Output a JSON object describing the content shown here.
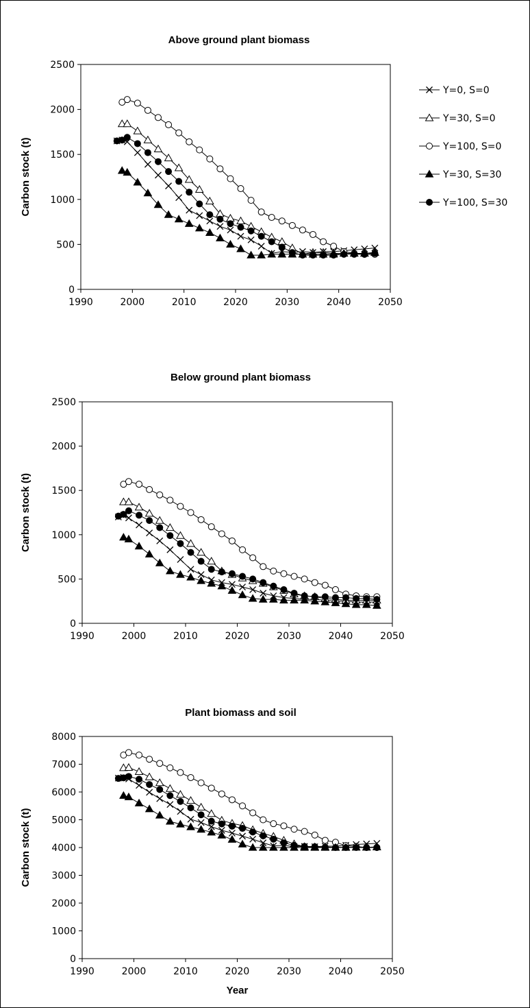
{
  "chart_data": [
    {
      "type": "line",
      "title": "Above ground plant biomass",
      "xlabel": "",
      "ylabel": "Carbon stock (t)",
      "xlim": [
        1990,
        2050
      ],
      "ylim": [
        0,
        2500
      ],
      "xticks": [
        "1990",
        "2000",
        "2010",
        "2020",
        "2030",
        "2040",
        "2050"
      ],
      "yticks": [
        "0",
        "500",
        "1000",
        "1500",
        "2000",
        "2500"
      ],
      "grid": false,
      "legend": "right",
      "x": [
        1997,
        1998,
        1999,
        2001,
        2003,
        2005,
        2007,
        2009,
        2011,
        2013,
        2015,
        2017,
        2019,
        2021,
        2023,
        2025,
        2027,
        2029,
        2031,
        2033,
        2035,
        2037,
        2039,
        2041,
        2043,
        2045,
        2047
      ],
      "series": [
        {
          "name": "Y=0, S=0",
          "marker": "x",
          "values": [
            1650,
            1660,
            1640,
            1520,
            1390,
            1270,
            1150,
            1020,
            880,
            820,
            760,
            700,
            660,
            590,
            550,
            480,
            400,
            420,
            410,
            420,
            410,
            420,
            420,
            430,
            440,
            450,
            460
          ]
        },
        {
          "name": "Y=30, S=0",
          "marker": "open-triangle",
          "values": [
            null,
            1840,
            1840,
            1760,
            1660,
            1560,
            1460,
            1350,
            1220,
            1110,
            980,
            840,
            790,
            760,
            700,
            640,
            580,
            530,
            460,
            390,
            410,
            410,
            400,
            400,
            400,
            400,
            410
          ]
        },
        {
          "name": "Y=100, S=0",
          "marker": "open-circle",
          "values": [
            null,
            2080,
            2110,
            2070,
            1990,
            1910,
            1830,
            1740,
            1640,
            1550,
            1450,
            1340,
            1230,
            1120,
            990,
            860,
            800,
            760,
            710,
            660,
            610,
            530,
            480,
            420,
            400,
            390,
            390
          ]
        },
        {
          "name": "Y=30, S=30",
          "marker": "filled-triangle",
          "values": [
            null,
            1320,
            1300,
            1190,
            1070,
            940,
            830,
            780,
            730,
            680,
            630,
            570,
            500,
            450,
            380,
            380,
            390,
            390,
            390,
            390,
            390,
            390,
            390,
            400,
            400,
            400,
            410
          ]
        },
        {
          "name": "Y=100, S=30",
          "marker": "filled-circle",
          "values": [
            1650,
            1660,
            1690,
            1620,
            1520,
            1420,
            1310,
            1200,
            1080,
            950,
            830,
            780,
            730,
            690,
            650,
            590,
            530,
            470,
            410,
            380,
            380,
            380,
            380,
            390,
            390,
            390,
            400
          ]
        }
      ]
    },
    {
      "type": "line",
      "title": "Below ground plant biomass",
      "xlabel": "",
      "ylabel": "Carbon stock (t)",
      "xlim": [
        1990,
        2050
      ],
      "ylim": [
        0,
        2500
      ],
      "xticks": [
        "1990",
        "2000",
        "2010",
        "2020",
        "2030",
        "2040",
        "2050"
      ],
      "yticks": [
        "0",
        "500",
        "1000",
        "1500",
        "2000",
        "2500"
      ],
      "grid": false,
      "x": [
        1997,
        1998,
        1999,
        2001,
        2003,
        2005,
        2007,
        2009,
        2011,
        2013,
        2015,
        2017,
        2019,
        2021,
        2023,
        2025,
        2027,
        2029,
        2031,
        2033,
        2035,
        2037,
        2039,
        2041,
        2043,
        2045,
        2047
      ],
      "series": [
        {
          "name": "Y=0, S=0",
          "marker": "x",
          "values": [
            1200,
            1220,
            1190,
            1110,
            1020,
            930,
            830,
            720,
            610,
            550,
            490,
            460,
            440,
            410,
            380,
            340,
            310,
            290,
            280,
            270,
            270,
            260,
            250,
            250,
            240,
            240,
            240
          ]
        },
        {
          "name": "Y=30, S=0",
          "marker": "open-triangle",
          "values": [
            null,
            1370,
            1370,
            1310,
            1240,
            1160,
            1080,
            990,
            900,
            800,
            700,
            590,
            550,
            510,
            480,
            450,
            410,
            370,
            330,
            310,
            300,
            280,
            270,
            260,
            260,
            260,
            260
          ]
        },
        {
          "name": "Y=100, S=0",
          "marker": "open-circle",
          "values": [
            null,
            1570,
            1600,
            1570,
            1510,
            1450,
            1390,
            1320,
            1250,
            1170,
            1090,
            1010,
            930,
            830,
            740,
            640,
            590,
            560,
            530,
            500,
            460,
            430,
            380,
            330,
            310,
            300,
            300
          ]
        },
        {
          "name": "Y=30, S=30",
          "marker": "filled-triangle",
          "values": [
            null,
            970,
            950,
            870,
            780,
            680,
            590,
            550,
            520,
            480,
            450,
            420,
            370,
            320,
            280,
            270,
            270,
            260,
            260,
            260,
            250,
            240,
            230,
            220,
            210,
            210,
            200
          ]
        },
        {
          "name": "Y=100, S=30",
          "marker": "filled-circle",
          "values": [
            1210,
            1230,
            1270,
            1220,
            1160,
            1080,
            990,
            900,
            800,
            700,
            610,
            580,
            560,
            530,
            500,
            460,
            420,
            380,
            340,
            310,
            300,
            300,
            290,
            290,
            280,
            280,
            270
          ]
        }
      ]
    },
    {
      "type": "line",
      "title": "Plant biomass and soil",
      "xlabel": "Year",
      "ylabel": "Carbon stock (t)",
      "xlim": [
        1990,
        2050
      ],
      "ylim": [
        0,
        8000
      ],
      "xticks": [
        "1990",
        "2000",
        "2010",
        "2020",
        "2030",
        "2040",
        "2050"
      ],
      "yticks": [
        "0",
        "1000",
        "2000",
        "3000",
        "4000",
        "5000",
        "6000",
        "7000",
        "8000"
      ],
      "grid": false,
      "x": [
        1997,
        1998,
        1999,
        2001,
        2003,
        2005,
        2007,
        2009,
        2011,
        2013,
        2015,
        2017,
        2019,
        2021,
        2023,
        2025,
        2027,
        2029,
        2031,
        2033,
        2035,
        2037,
        2039,
        2041,
        2043,
        2045,
        2047
      ],
      "series": [
        {
          "name": "Y=0, S=0",
          "marker": "x",
          "values": [
            6500,
            6530,
            6470,
            6240,
            5990,
            5760,
            5550,
            5300,
            5020,
            4900,
            4750,
            4620,
            4520,
            4410,
            4300,
            4170,
            4060,
            4080,
            4030,
            4040,
            4030,
            4050,
            4050,
            4080,
            4110,
            4130,
            4150
          ]
        },
        {
          "name": "Y=30, S=0",
          "marker": "open-triangle",
          "values": [
            null,
            6870,
            6880,
            6730,
            6540,
            6330,
            6120,
            5910,
            5690,
            5450,
            5220,
            4980,
            4870,
            4790,
            4640,
            4510,
            4400,
            4260,
            4130,
            4030,
            4020,
            4020,
            4010,
            4010,
            4010,
            4010,
            4020
          ]
        },
        {
          "name": "Y=100, S=0",
          "marker": "open-circle",
          "values": [
            null,
            7330,
            7420,
            7330,
            7180,
            7030,
            6870,
            6700,
            6520,
            6330,
            6140,
            5930,
            5720,
            5500,
            5250,
            5000,
            4860,
            4780,
            4660,
            4580,
            4450,
            4260,
            4190,
            4070,
            4040,
            4000,
            4000
          ]
        },
        {
          "name": "Y=30, S=30",
          "marker": "filled-triangle",
          "values": [
            null,
            5870,
            5820,
            5600,
            5390,
            5160,
            4940,
            4840,
            4740,
            4650,
            4550,
            4440,
            4290,
            4120,
            4000,
            4000,
            4000,
            4000,
            4000,
            4000,
            4000,
            4000,
            4000,
            4000,
            4010,
            4010,
            4020
          ]
        },
        {
          "name": "Y=100, S=30",
          "marker": "filled-circle",
          "values": [
            6490,
            6510,
            6560,
            6460,
            6270,
            6090,
            5870,
            5660,
            5430,
            5180,
            4950,
            4850,
            4770,
            4690,
            4560,
            4420,
            4300,
            4170,
            4080,
            4040,
            4030,
            4010,
            4000,
            4000,
            4000,
            4000,
            4000
          ]
        }
      ]
    }
  ]
}
